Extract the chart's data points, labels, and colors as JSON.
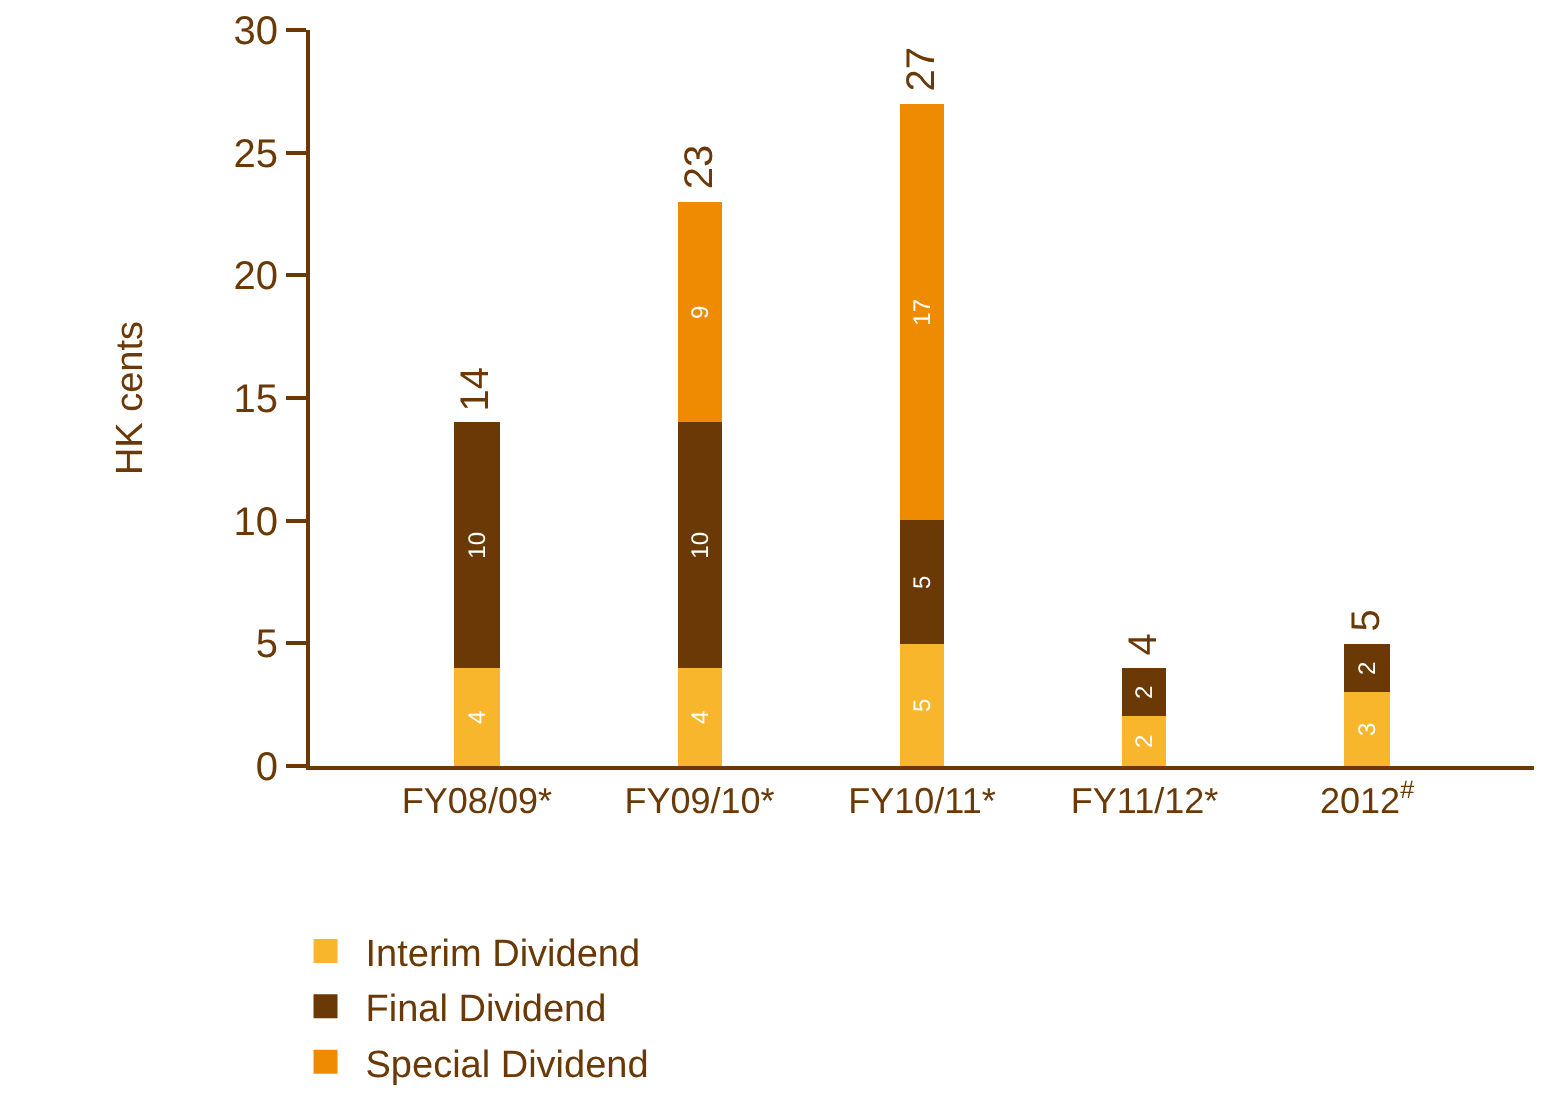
{
  "chart_data": {
    "type": "bar",
    "ylabel": "HK cents",
    "categories": [
      "FY08/09*",
      "FY09/10*",
      "FY10/11*",
      "FY11/12*",
      "2012$^{#}$"
    ],
    "stacked": true,
    "data_labels": true,
    "totals": [
      "14",
      "23",
      "27",
      "4",
      "5"
    ],
    "series": [
      {
        "name": "Interim Dividend",
        "color": "#f8b62d",
        "values": [
          4,
          4,
          5,
          2,
          3
        ]
      },
      {
        "name": "Final Dividend",
        "color": "#6a3906",
        "values": [
          10,
          10,
          5,
          2,
          2
        ]
      },
      {
        "name": "Special Dividend",
        "color": "#ef8b00",
        "values": [
          null,
          9,
          17,
          null,
          null
        ]
      }
    ],
    "ylim": [
      0,
      30
    ],
    "yticks": [
      0,
      5,
      10,
      15,
      20,
      25,
      30
    ],
    "grid": false,
    "legend": "bottom left"
  }
}
